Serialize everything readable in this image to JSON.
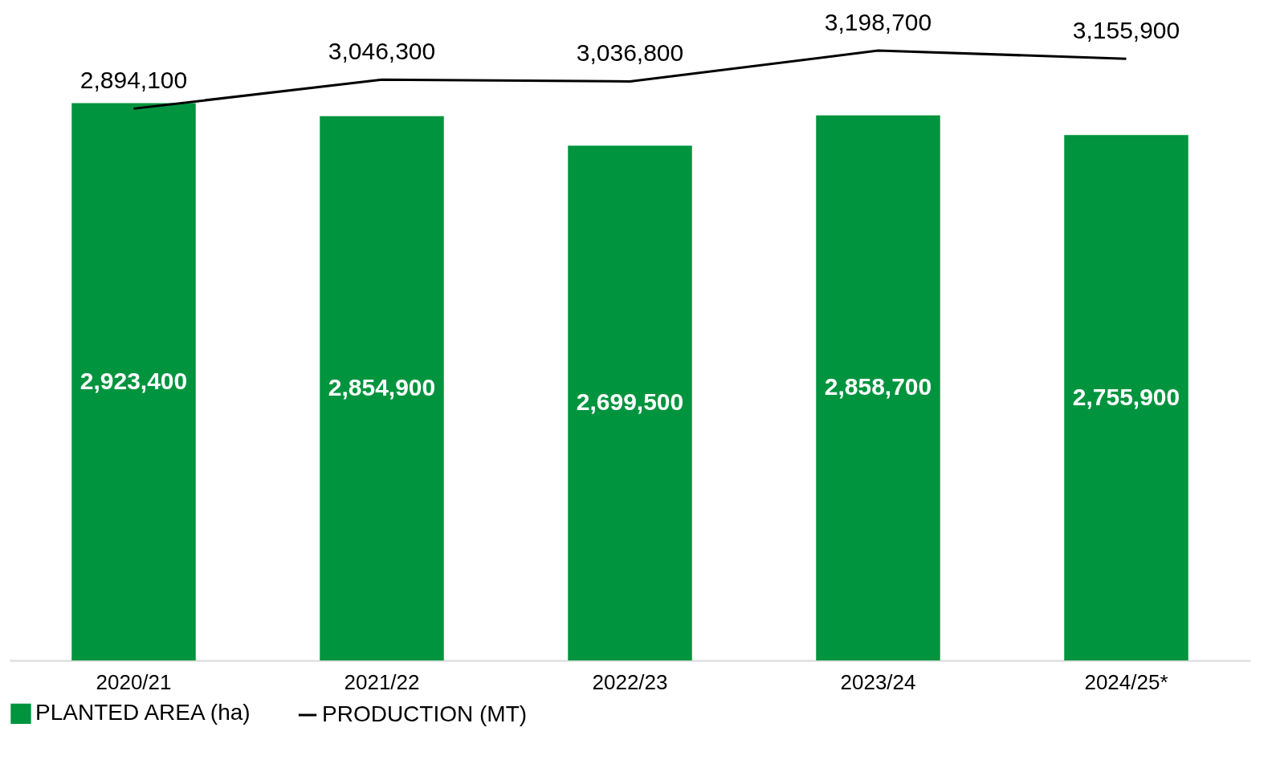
{
  "chart_data": {
    "type": "bar",
    "categories": [
      "2020/21",
      "2021/22",
      "2022/23",
      "2023/24",
      "2024/25*"
    ],
    "legend": "bottom",
    "series": [
      {
        "name": "PLANTED AREA (ha)",
        "color": "#00943e",
        "values": [
          2923400,
          2854900,
          2699500,
          2858700,
          2755900
        ],
        "value_labels": [
          "2,923,400",
          "2,854,900",
          "2,699,500",
          "2,858,700",
          "2,755,900"
        ]
      },
      {
        "name": "PRODUCTION (MT)",
        "type": "line",
        "color": "#000000",
        "values": [
          2894100,
          3046300,
          3036800,
          3198700,
          3155900
        ],
        "value_labels": [
          "2,894,100",
          "3,046,300",
          "3,036,800",
          "3,198,700",
          "3,155,900"
        ]
      }
    ]
  }
}
